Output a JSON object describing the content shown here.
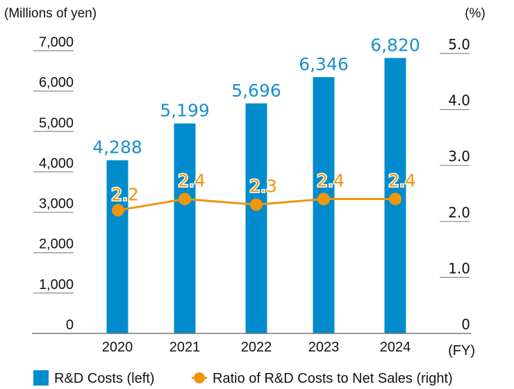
{
  "chart_data": {
    "type": "bar+line",
    "title": "",
    "categories": [
      "2020",
      "2021",
      "2022",
      "2023",
      "2024"
    ],
    "xlabel": "(FY)",
    "series": [
      {
        "name": "R&D Costs (left)",
        "type": "bar",
        "axis": "left",
        "color": "#008ccc",
        "values": [
          4288,
          5199,
          5696,
          6346,
          6820
        ],
        "labels": [
          "4,288",
          "5,199",
          "5,696",
          "6,346",
          "6,820"
        ]
      },
      {
        "name": "Ratio of R&D Costs to Net Sales (right)",
        "type": "line",
        "axis": "right",
        "color": "#f0960a",
        "values": [
          2.2,
          2.4,
          2.3,
          2.4,
          2.4
        ],
        "labels": [
          "2.2",
          "2.4",
          "2.3",
          "2.4",
          "2.4"
        ]
      }
    ],
    "left_axis": {
      "label": "(Millions of yen)",
      "ylim": [
        0,
        7000
      ],
      "ticks": [
        "0",
        "1,000",
        "2,000",
        "3,000",
        "4,000",
        "5,000",
        "6,000",
        "7,000"
      ]
    },
    "right_axis": {
      "label": "(%)",
      "ylim": [
        0,
        5.0
      ],
      "ticks": [
        "0",
        "1.0",
        "2.0",
        "3.0",
        "4.0",
        "5.0"
      ]
    },
    "grid": false,
    "legend": {
      "position": "bottom-left",
      "items": [
        "R&D Costs (left)",
        "Ratio of R&D Costs to Net Sales (right)"
      ]
    }
  }
}
